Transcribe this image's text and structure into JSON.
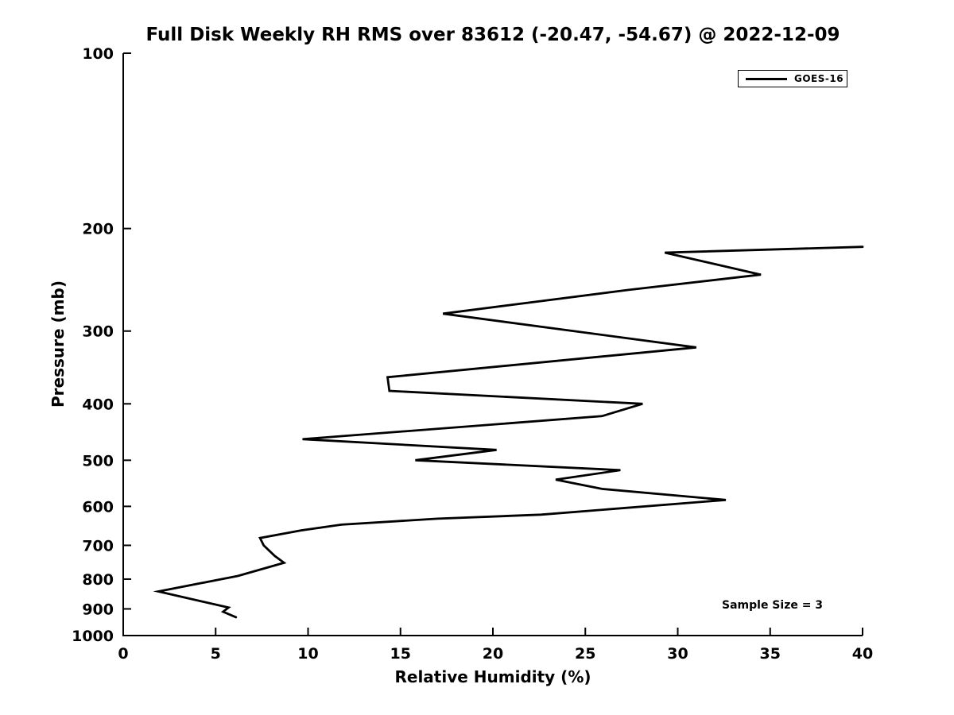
{
  "chart_data": {
    "type": "line",
    "title": "Full Disk Weekly RH RMS over 83612 (-20.47, -54.67) @ 2022-12-09",
    "xlabel": "Relative Humidity (%)",
    "ylabel": "Pressure (mb)",
    "x_axis": {
      "min": 0,
      "max": 40,
      "ticks": [
        0,
        5,
        10,
        15,
        20,
        25,
        30,
        35,
        40
      ]
    },
    "y_axis": {
      "min": 100,
      "max": 1000,
      "scale": "log",
      "inverted": true,
      "ticks": [
        100,
        200,
        300,
        400,
        500,
        600,
        700,
        800,
        900,
        1000
      ]
    },
    "grid": false,
    "background_color": "#ffffff",
    "axis_color": "#000000",
    "legend": {
      "label": "GOES-16",
      "position": "upper right",
      "line_color": "#000000"
    },
    "annotation": {
      "text": "Sample Size = 3",
      "x_rh": 32.4,
      "y_mb": 865
    },
    "series": [
      {
        "name": "GOES-16",
        "color": "#000000",
        "line_width": 2.8,
        "points_rh_pressure": [
          [
            6.1,
            930
          ],
          [
            5.4,
            910
          ],
          [
            5.7,
            895
          ],
          [
            1.9,
            840
          ],
          [
            6.2,
            790
          ],
          [
            8.7,
            750
          ],
          [
            8.2,
            730
          ],
          [
            7.6,
            700
          ],
          [
            7.4,
            680
          ],
          [
            9.6,
            660
          ],
          [
            11.8,
            645
          ],
          [
            17.0,
            630
          ],
          [
            22.6,
            620
          ],
          [
            32.6,
            585
          ],
          [
            25.9,
            560
          ],
          [
            23.4,
            540
          ],
          [
            26.9,
            520
          ],
          [
            15.8,
            500
          ],
          [
            20.2,
            480
          ],
          [
            9.7,
            460
          ],
          [
            25.9,
            420
          ],
          [
            28.1,
            400
          ],
          [
            14.4,
            380
          ],
          [
            14.3,
            360
          ],
          [
            31.0,
            320
          ],
          [
            17.3,
            280
          ],
          [
            27.3,
            255
          ],
          [
            34.5,
            240
          ],
          [
            29.3,
            220
          ],
          [
            40.0,
            215
          ]
        ]
      }
    ]
  }
}
